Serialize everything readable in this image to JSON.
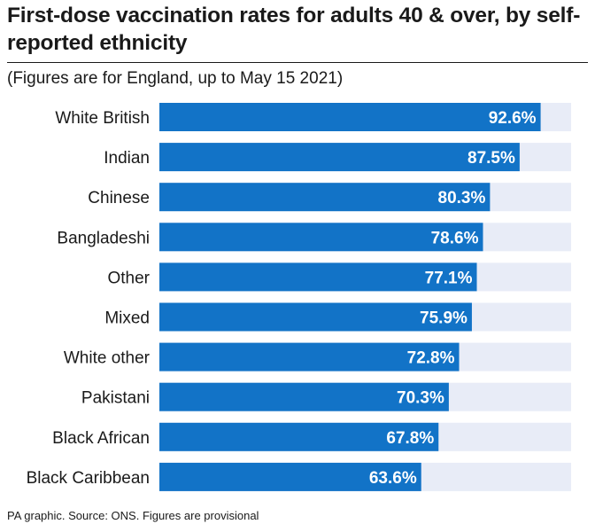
{
  "title": "First-dose vaccination rates for adults 40 & over, by self-reported ethnicity",
  "subtitle": "(Figures are for England, up to May 15 2021)",
  "footer": "PA graphic. Source: ONS. Figures are provisional",
  "colors": {
    "bar": "#1273c7",
    "track": "#e8ecf7",
    "text": "#1a1a1a"
  },
  "chart_data": {
    "type": "bar",
    "orientation": "horizontal",
    "title": "First-dose vaccination rates for adults 40 & over, by self-reported ethnicity",
    "subtitle": "(Figures are for England, up to May 15 2021)",
    "xlim": [
      0,
      100
    ],
    "grid": false,
    "categories": [
      "White British",
      "Indian",
      "Chinese",
      "Bangladeshi",
      "Other",
      "Mixed",
      "White other",
      "Pakistani",
      "Black African",
      "Black Caribbean"
    ],
    "values": [
      92.6,
      87.5,
      80.3,
      78.6,
      77.1,
      75.9,
      72.8,
      70.3,
      67.8,
      63.6
    ],
    "value_labels": [
      "92.6%",
      "87.5%",
      "80.3%",
      "78.6%",
      "77.1%",
      "75.9%",
      "72.8%",
      "70.3%",
      "67.8%",
      "63.6%"
    ]
  }
}
